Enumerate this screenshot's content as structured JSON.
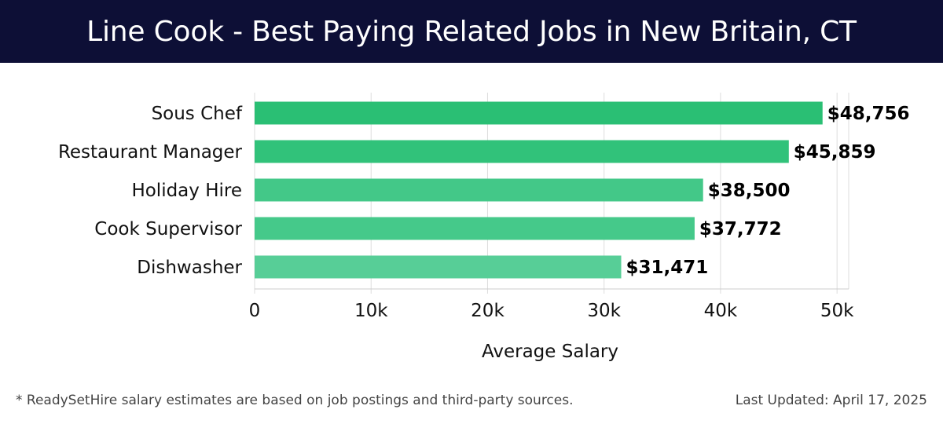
{
  "header": {
    "title": "Line Cook - Best Paying Related Jobs in New Britain, CT"
  },
  "footer": {
    "note": "* ReadySetHire salary estimates are based on job postings and third-party sources.",
    "updated": "Last Updated: April 17, 2025"
  },
  "colors": {
    "header_bg": "#0d0f36",
    "bar_colors": [
      "#2abf74",
      "#31c27a",
      "#43c888",
      "#45c98a",
      "#57ce97"
    ]
  },
  "chart_data": {
    "type": "bar",
    "orientation": "horizontal",
    "title": "Line Cook - Best Paying Related Jobs in New Britain, CT",
    "categories": [
      "Sous Chef",
      "Restaurant Manager",
      "Holiday Hire",
      "Cook Supervisor",
      "Dishwasher"
    ],
    "values": [
      48756,
      45859,
      38500,
      37772,
      31471
    ],
    "value_labels": [
      "$48,756",
      "$45,859",
      "$38,500",
      "$37,772",
      "$31,471"
    ],
    "xlabel": "Average Salary",
    "ylabel": "",
    "xlim": [
      0,
      51000
    ],
    "xticks": [
      0,
      10000,
      20000,
      30000,
      40000,
      50000
    ],
    "xtick_labels": [
      "0",
      "10k",
      "20k",
      "30k",
      "40k",
      "50k"
    ],
    "grid": "vertical",
    "legend": "none"
  }
}
